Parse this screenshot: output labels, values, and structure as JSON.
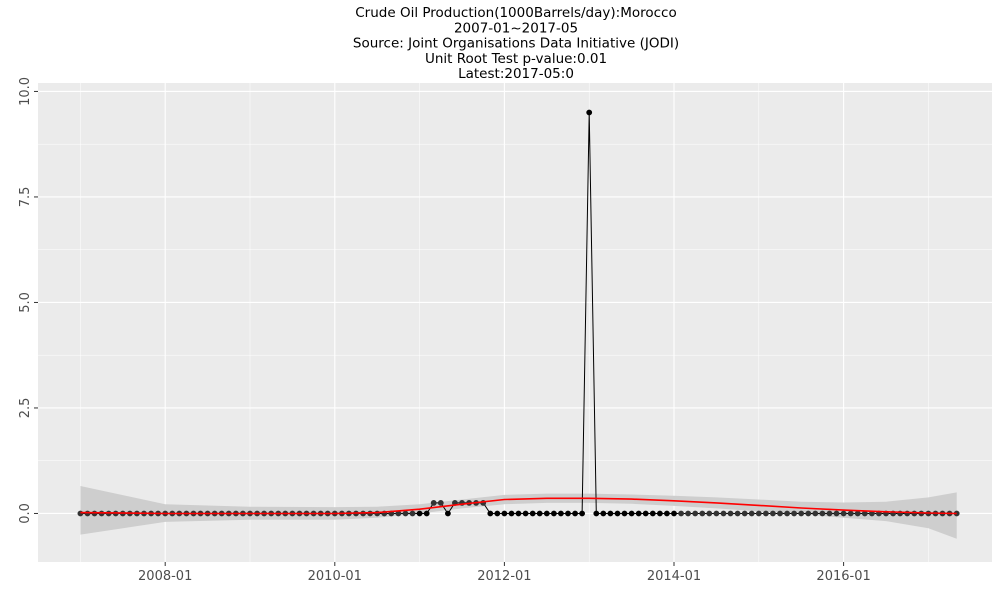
{
  "chart_data": {
    "type": "line",
    "title_lines": [
      "Crude Oil Production(1000Barrels/day):Morocco",
      "2007-01~2017-05",
      "Source: Joint Organisations Data Initiative (JODI)",
      "Unit Root Test p-value:0.01",
      "Latest:2017-05:0"
    ],
    "xlabel": "",
    "ylabel": "",
    "x_start": "2007-01",
    "x_end": "2017-05",
    "x_ticks": [
      "2008-01",
      "2010-01",
      "2012-01",
      "2014-01",
      "2016-01"
    ],
    "xlim": [
      "2006-07",
      "2017-10"
    ],
    "y_ticks": [
      "0.0",
      "2.5",
      "5.0",
      "7.5",
      "10.0"
    ],
    "ylim": [
      -1.15,
      10.2
    ],
    "series": [
      {
        "kind": "observed",
        "color": "#000000",
        "values": [
          0,
          0,
          0,
          0,
          0,
          0,
          0,
          0,
          0,
          0,
          0,
          0,
          0,
          0,
          0,
          0,
          0,
          0,
          0,
          0,
          0,
          0,
          0,
          0,
          0,
          0,
          0,
          0,
          0,
          0,
          0,
          0,
          0,
          0,
          0,
          0,
          0,
          0,
          0,
          0,
          0,
          0,
          0,
          0,
          0,
          0,
          0,
          0,
          0,
          0,
          0.25,
          0.25,
          0,
          0.25,
          0.25,
          0.25,
          0.25,
          0.25,
          0,
          0,
          0,
          0,
          0,
          0,
          0,
          0,
          0,
          0,
          0,
          0,
          0,
          0,
          9.5,
          0,
          0,
          0,
          0,
          0,
          0,
          0,
          0,
          0,
          0,
          0,
          0,
          0,
          0,
          0,
          0,
          0,
          0,
          0,
          0,
          0,
          0,
          0,
          0,
          0,
          0,
          0,
          0,
          0,
          0,
          0,
          0,
          0,
          0,
          0,
          0,
          0,
          0,
          0,
          0,
          0,
          0,
          0,
          0,
          0,
          0,
          0,
          0,
          0,
          0,
          0,
          0
        ]
      },
      {
        "kind": "smooth",
        "color": "#ff0000",
        "ribbon_color": "#cccccc",
        "x": [
          "2007-01",
          "2008-01",
          "2009-01",
          "2010-01",
          "2010-07",
          "2011-01",
          "2011-07",
          "2012-01",
          "2012-07",
          "2013-01",
          "2013-07",
          "2014-01",
          "2014-07",
          "2015-01",
          "2015-07",
          "2016-01",
          "2016-07",
          "2017-01",
          "2017-05"
        ],
        "values": [
          0.02,
          0.0,
          0.0,
          0.0,
          0.02,
          0.1,
          0.22,
          0.33,
          0.36,
          0.36,
          0.34,
          0.3,
          0.25,
          0.19,
          0.13,
          0.08,
          0.04,
          0.01,
          0.0
        ],
        "lower": [
          -0.5,
          -0.2,
          -0.15,
          -0.15,
          -0.1,
          0.0,
          0.12,
          0.22,
          0.25,
          0.25,
          0.23,
          0.18,
          0.12,
          0.05,
          -0.02,
          -0.1,
          -0.18,
          -0.35,
          -0.6
        ],
        "upper": [
          0.65,
          0.22,
          0.16,
          0.15,
          0.16,
          0.22,
          0.33,
          0.44,
          0.47,
          0.47,
          0.45,
          0.42,
          0.38,
          0.33,
          0.28,
          0.26,
          0.28,
          0.38,
          0.5
        ]
      }
    ],
    "grid": true,
    "legend": "none",
    "panel_background": "#ebebeb",
    "grid_color": "#ffffff"
  }
}
